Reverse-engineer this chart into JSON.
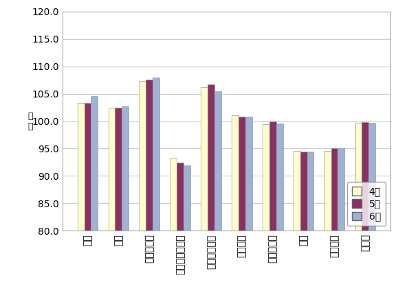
{
  "categories": [
    "食料",
    "住居",
    "光熱・水道",
    "家具・家事用品",
    "被服及び履物",
    "保健医療",
    "交通・通信",
    "教育",
    "教養娯楽",
    "諸雑費"
  ],
  "april": [
    103.3,
    102.5,
    107.3,
    93.3,
    106.2,
    101.1,
    99.5,
    94.5,
    94.6,
    99.7
  ],
  "may": [
    103.3,
    102.5,
    107.6,
    92.4,
    106.7,
    100.8,
    100.0,
    94.4,
    95.0,
    99.8
  ],
  "june": [
    104.6,
    102.7,
    107.9,
    91.9,
    105.4,
    100.8,
    99.6,
    94.4,
    95.0,
    99.7
  ],
  "colors": [
    "#ffffcc",
    "#8b3060",
    "#9cb3d6"
  ],
  "legend_labels": [
    "4月",
    "5月",
    "6月"
  ],
  "ylabel": "指\n数",
  "ylim": [
    80.0,
    120.0
  ],
  "yticks": [
    80.0,
    85.0,
    90.0,
    95.0,
    100.0,
    105.0,
    110.0,
    115.0,
    120.0
  ],
  "bar_width": 0.22,
  "background_color": "#ffffff",
  "grid_color": "#cccccc",
  "edge_color": "#999999",
  "spine_color": "#aaaaaa"
}
